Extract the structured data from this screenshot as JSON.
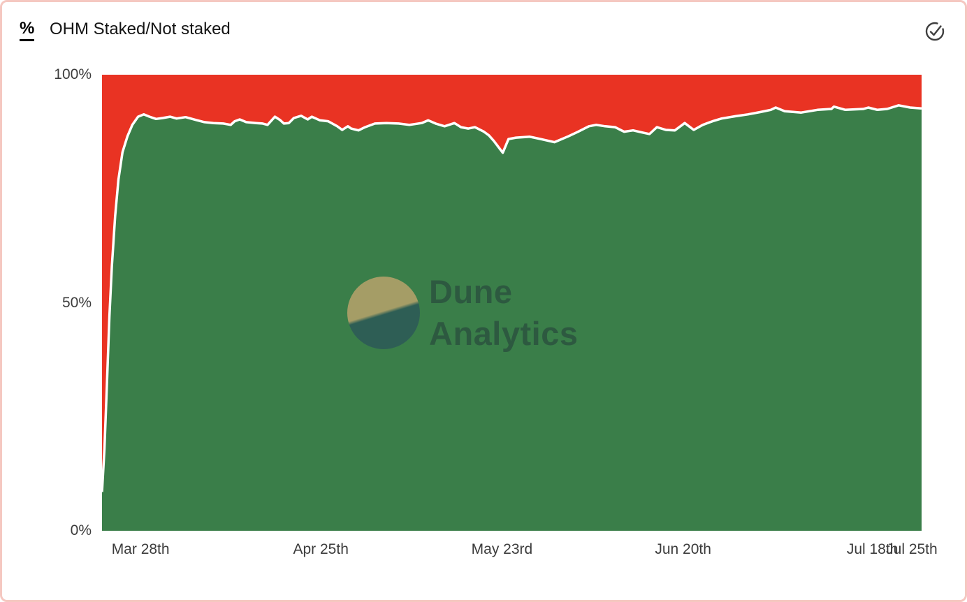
{
  "header": {
    "unit_label": "%",
    "title": "OHM Staked/Not staked"
  },
  "watermark": {
    "line1": "Dune",
    "line2": "Analytics"
  },
  "colors": {
    "staked_green": "#3a7e49",
    "not_staked_red": "#e93323",
    "boundary_line": "#ffffff",
    "card_border": "#f5c8c1",
    "axis_label": "#3c3c3c",
    "title_text": "#141414",
    "check_icon": "#3f3f3f"
  },
  "chart_data": {
    "type": "area",
    "stacked": true,
    "title": "OHM Staked/Not staked",
    "unit": "%",
    "ylim": [
      0,
      100
    ],
    "grid": false,
    "legend": "none",
    "line_color": "#ffffff",
    "y_ticks": [
      {
        "label": "100%",
        "pos": 0
      },
      {
        "label": "50%",
        "pos": 0.5
      },
      {
        "label": "0%",
        "pos": 1
      }
    ],
    "x_ticks": [
      {
        "label": "Mar 28th",
        "pos": 0.047
      },
      {
        "label": "Apr 25th",
        "pos": 0.267
      },
      {
        "label": "May 23rd",
        "pos": 0.488
      },
      {
        "label": "Jun 20th",
        "pos": 0.709
      },
      {
        "label": "Jul 18th",
        "pos": 0.94
      },
      {
        "label": "Jul 25th",
        "pos": 0.988
      }
    ],
    "series": [
      {
        "name": "Staked",
        "color": "#3a7e49",
        "points": [
          [
            0.0,
            8.5
          ],
          [
            0.003,
            18
          ],
          [
            0.006,
            32
          ],
          [
            0.009,
            47
          ],
          [
            0.012,
            58
          ],
          [
            0.016,
            69
          ],
          [
            0.02,
            77
          ],
          [
            0.025,
            83
          ],
          [
            0.031,
            86.5
          ],
          [
            0.037,
            89.0
          ],
          [
            0.044,
            90.8
          ],
          [
            0.051,
            91.3
          ],
          [
            0.058,
            90.8
          ],
          [
            0.066,
            90.3
          ],
          [
            0.074,
            90.5
          ],
          [
            0.083,
            90.8
          ],
          [
            0.091,
            90.4
          ],
          [
            0.102,
            90.7
          ],
          [
            0.114,
            90.1
          ],
          [
            0.125,
            89.6
          ],
          [
            0.136,
            89.4
          ],
          [
            0.148,
            89.3
          ],
          [
            0.157,
            89.0
          ],
          [
            0.162,
            89.8
          ],
          [
            0.168,
            90.2
          ],
          [
            0.176,
            89.6
          ],
          [
            0.188,
            89.4
          ],
          [
            0.196,
            89.3
          ],
          [
            0.202,
            89.0
          ],
          [
            0.211,
            90.8
          ],
          [
            0.217,
            90.1
          ],
          [
            0.222,
            89.3
          ],
          [
            0.228,
            89.4
          ],
          [
            0.234,
            90.5
          ],
          [
            0.243,
            91.0
          ],
          [
            0.251,
            90.2
          ],
          [
            0.256,
            90.8
          ],
          [
            0.266,
            90.0
          ],
          [
            0.276,
            89.8
          ],
          [
            0.287,
            88.7
          ],
          [
            0.293,
            87.9
          ],
          [
            0.3,
            88.7
          ],
          [
            0.304,
            88.2
          ],
          [
            0.313,
            87.8
          ],
          [
            0.321,
            88.5
          ],
          [
            0.333,
            89.3
          ],
          [
            0.347,
            89.4
          ],
          [
            0.362,
            89.3
          ],
          [
            0.375,
            89.0
          ],
          [
            0.39,
            89.4
          ],
          [
            0.398,
            90.0
          ],
          [
            0.407,
            89.3
          ],
          [
            0.418,
            88.7
          ],
          [
            0.43,
            89.4
          ],
          [
            0.438,
            88.5
          ],
          [
            0.447,
            88.2
          ],
          [
            0.455,
            88.5
          ],
          [
            0.466,
            87.5
          ],
          [
            0.472,
            86.7
          ],
          [
            0.478,
            85.5
          ],
          [
            0.489,
            82.9
          ],
          [
            0.496,
            85.9
          ],
          [
            0.505,
            86.2
          ],
          [
            0.522,
            86.4
          ],
          [
            0.535,
            85.9
          ],
          [
            0.552,
            85.2
          ],
          [
            0.569,
            86.5
          ],
          [
            0.581,
            87.5
          ],
          [
            0.594,
            88.7
          ],
          [
            0.603,
            89.0
          ],
          [
            0.614,
            88.7
          ],
          [
            0.626,
            88.5
          ],
          [
            0.637,
            87.5
          ],
          [
            0.648,
            87.8
          ],
          [
            0.66,
            87.3
          ],
          [
            0.668,
            87.0
          ],
          [
            0.677,
            88.5
          ],
          [
            0.688,
            87.9
          ],
          [
            0.699,
            87.8
          ],
          [
            0.711,
            89.4
          ],
          [
            0.722,
            87.9
          ],
          [
            0.733,
            89.0
          ],
          [
            0.745,
            89.8
          ],
          [
            0.756,
            90.4
          ],
          [
            0.773,
            90.9
          ],
          [
            0.788,
            91.3
          ],
          [
            0.803,
            91.8
          ],
          [
            0.816,
            92.3
          ],
          [
            0.822,
            92.8
          ],
          [
            0.833,
            92.0
          ],
          [
            0.853,
            91.7
          ],
          [
            0.873,
            92.3
          ],
          [
            0.89,
            92.5
          ],
          [
            0.893,
            93.0
          ],
          [
            0.907,
            92.3
          ],
          [
            0.929,
            92.5
          ],
          [
            0.935,
            92.8
          ],
          [
            0.946,
            92.3
          ],
          [
            0.958,
            92.5
          ],
          [
            0.972,
            93.3
          ],
          [
            0.986,
            92.8
          ],
          [
            1.0,
            92.6
          ]
        ]
      },
      {
        "name": "Not staked",
        "color": "#e93323",
        "role": "remainder-to-100%"
      }
    ]
  }
}
